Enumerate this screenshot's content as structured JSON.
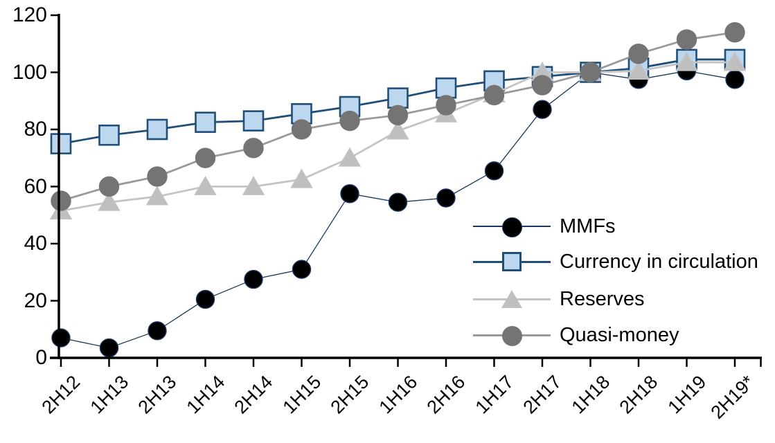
{
  "chart_data": {
    "type": "line",
    "title": "",
    "categories": [
      "2H12",
      "1H13",
      "2H13",
      "1H14",
      "2H14",
      "1H15",
      "2H15",
      "1H16",
      "2H16",
      "1H17",
      "2H17",
      "1H18",
      "2H18",
      "1H19",
      "2H19*"
    ],
    "series": [
      {
        "name": "MMFs",
        "marker": "circle",
        "marker_color": "#000000",
        "marker_border": "#1F3864",
        "line_color": "#17375E",
        "line_width": 1.3,
        "values": [
          7,
          3.5,
          9.5,
          20.5,
          27.5,
          31,
          57.5,
          54.5,
          56,
          65.5,
          87,
          100,
          97.5,
          100.5,
          97.5
        ]
      },
      {
        "name": "Currency in circulation",
        "marker": "square",
        "marker_color": "#BDD7EE",
        "marker_border": "#1F4E79",
        "line_color": "#1F4E79",
        "line_width": 2.8,
        "values": [
          75,
          78,
          80,
          82.5,
          83,
          85.5,
          88,
          91,
          94.5,
          97,
          98.5,
          100,
          101.5,
          104.5,
          104.5
        ]
      },
      {
        "name": "Reserves",
        "marker": "triangle",
        "marker_color": "#BFBFBF",
        "marker_border": "#C6C6C6",
        "line_color": "#C4C4C4",
        "line_width": 2.8,
        "values": [
          51.5,
          54.5,
          56.5,
          60,
          60,
          62.5,
          70,
          79.5,
          85.5,
          92.5,
          100,
          100,
          100.5,
          103.5,
          103.5
        ]
      },
      {
        "name": "Quasi-money",
        "marker": "circle",
        "marker_color": "#747474",
        "marker_border": "#747474",
        "line_color": "#999999",
        "line_width": 2.8,
        "values": [
          55,
          60,
          63.5,
          70,
          73.5,
          80,
          83,
          85,
          88.5,
          92,
          95.5,
          100,
          106.5,
          111.5,
          114
        ]
      }
    ],
    "y_axis": {
      "min": 0,
      "max": 120,
      "step": 20,
      "tick_labels": [
        "0",
        "20",
        "40",
        "60",
        "80",
        "100",
        "120"
      ]
    },
    "legend": {
      "position": "inside-right",
      "items": [
        "MMFs",
        "Currency in circulation",
        "Reserves",
        "Quasi-money"
      ]
    },
    "grid": false,
    "axis_color": "#000000"
  }
}
